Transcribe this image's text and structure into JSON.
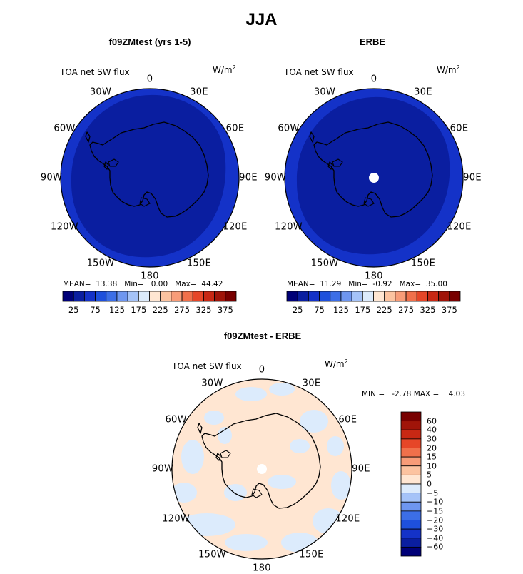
{
  "figure": {
    "title": "JJA",
    "panels": [
      {
        "title": "f09ZMtest (yrs 1-5)",
        "field_label": "TOA net SW flux",
        "units": "W/m",
        "units_sup": "2",
        "stats": {
          "mean_label": "MEAN=",
          "mean": "13.38",
          "min_label": "Min=",
          "min": "0.00",
          "max_label": "Max=",
          "max": "44.42"
        }
      },
      {
        "title": "ERBE",
        "field_label": "TOA net SW flux",
        "units": "W/m",
        "units_sup": "2",
        "stats": {
          "mean_label": "MEAN=",
          "mean": "11.29",
          "min_label": "Min=",
          "min": "-0.92",
          "max_label": "Max=",
          "max": "35.00"
        }
      },
      {
        "title": "f09ZMtest - ERBE",
        "field_label": "TOA net SW flux",
        "units": "W/m",
        "units_sup": "2",
        "minmax": {
          "min_label": "MIN =",
          "min": "-2.78",
          "max_label": "MAX =",
          "max": "4.03"
        }
      }
    ],
    "longitude_labels": [
      "0",
      "30E",
      "60E",
      "90E",
      "120E",
      "150E",
      "180",
      "150W",
      "120W",
      "90W",
      "60W",
      "30W"
    ]
  },
  "chart_data": [
    {
      "type": "heatmap",
      "projection": "south-polar-stereographic",
      "title": "f09ZMtest (yrs 1-5)",
      "variable": "TOA net SW flux",
      "units": "W/m^2",
      "season": "JJA",
      "mean": 13.38,
      "min": 0.0,
      "max": 44.42,
      "colorbar_levels": [
        25,
        50,
        75,
        100,
        125,
        150,
        175,
        200,
        225,
        250,
        275,
        300,
        325,
        350,
        375
      ],
      "colorbar_tick_labels": [
        "25",
        "75",
        "125",
        "175",
        "225",
        "275",
        "325",
        "375"
      ],
      "colorbar_colors": [
        "#000078",
        "#0a1ea0",
        "#1432c8",
        "#1e50dc",
        "#3c6ee6",
        "#6e96f0",
        "#a5c3f8",
        "#dcebfc",
        "#ffe6d2",
        "#fcc3a0",
        "#f89c78",
        "#f0704b",
        "#e64628",
        "#c82814",
        "#a01409",
        "#780000"
      ]
    },
    {
      "type": "heatmap",
      "projection": "south-polar-stereographic",
      "title": "ERBE",
      "variable": "TOA net SW flux",
      "units": "W/m^2",
      "season": "JJA",
      "mean": 11.29,
      "min": -0.92,
      "max": 35.0,
      "colorbar_levels": [
        25,
        50,
        75,
        100,
        125,
        150,
        175,
        200,
        225,
        250,
        275,
        300,
        325,
        350,
        375
      ],
      "colorbar_tick_labels": [
        "25",
        "75",
        "125",
        "175",
        "225",
        "275",
        "325",
        "375"
      ],
      "colorbar_colors": [
        "#000078",
        "#0a1ea0",
        "#1432c8",
        "#1e50dc",
        "#3c6ee6",
        "#6e96f0",
        "#a5c3f8",
        "#dcebfc",
        "#ffe6d2",
        "#fcc3a0",
        "#f89c78",
        "#f0704b",
        "#e64628",
        "#c82814",
        "#a01409",
        "#780000"
      ]
    },
    {
      "type": "heatmap",
      "projection": "south-polar-stereographic",
      "title": "f09ZMtest - ERBE",
      "variable": "TOA net SW flux",
      "units": "W/m^2",
      "season": "JJA",
      "min": -2.78,
      "max": 4.03,
      "colorbar_levels": [
        -60,
        -40,
        -30,
        -20,
        -15,
        -10,
        -5,
        0,
        5,
        10,
        15,
        20,
        30,
        40,
        60
      ],
      "colorbar_tick_labels": [
        "60",
        "40",
        "30",
        "20",
        "15",
        "10",
        "5",
        "0",
        "−5",
        "−10",
        "−15",
        "−20",
        "−30",
        "−40",
        "−60"
      ],
      "colorbar_colors": [
        "#780000",
        "#a01409",
        "#c82814",
        "#e64628",
        "#f0704b",
        "#f89c78",
        "#fcc3a0",
        "#ffe6d2",
        "#dcebfc",
        "#a5c3f8",
        "#6e96f0",
        "#3c6ee6",
        "#1e50dc",
        "#1432c8",
        "#0a1ea0",
        "#000078"
      ]
    }
  ]
}
